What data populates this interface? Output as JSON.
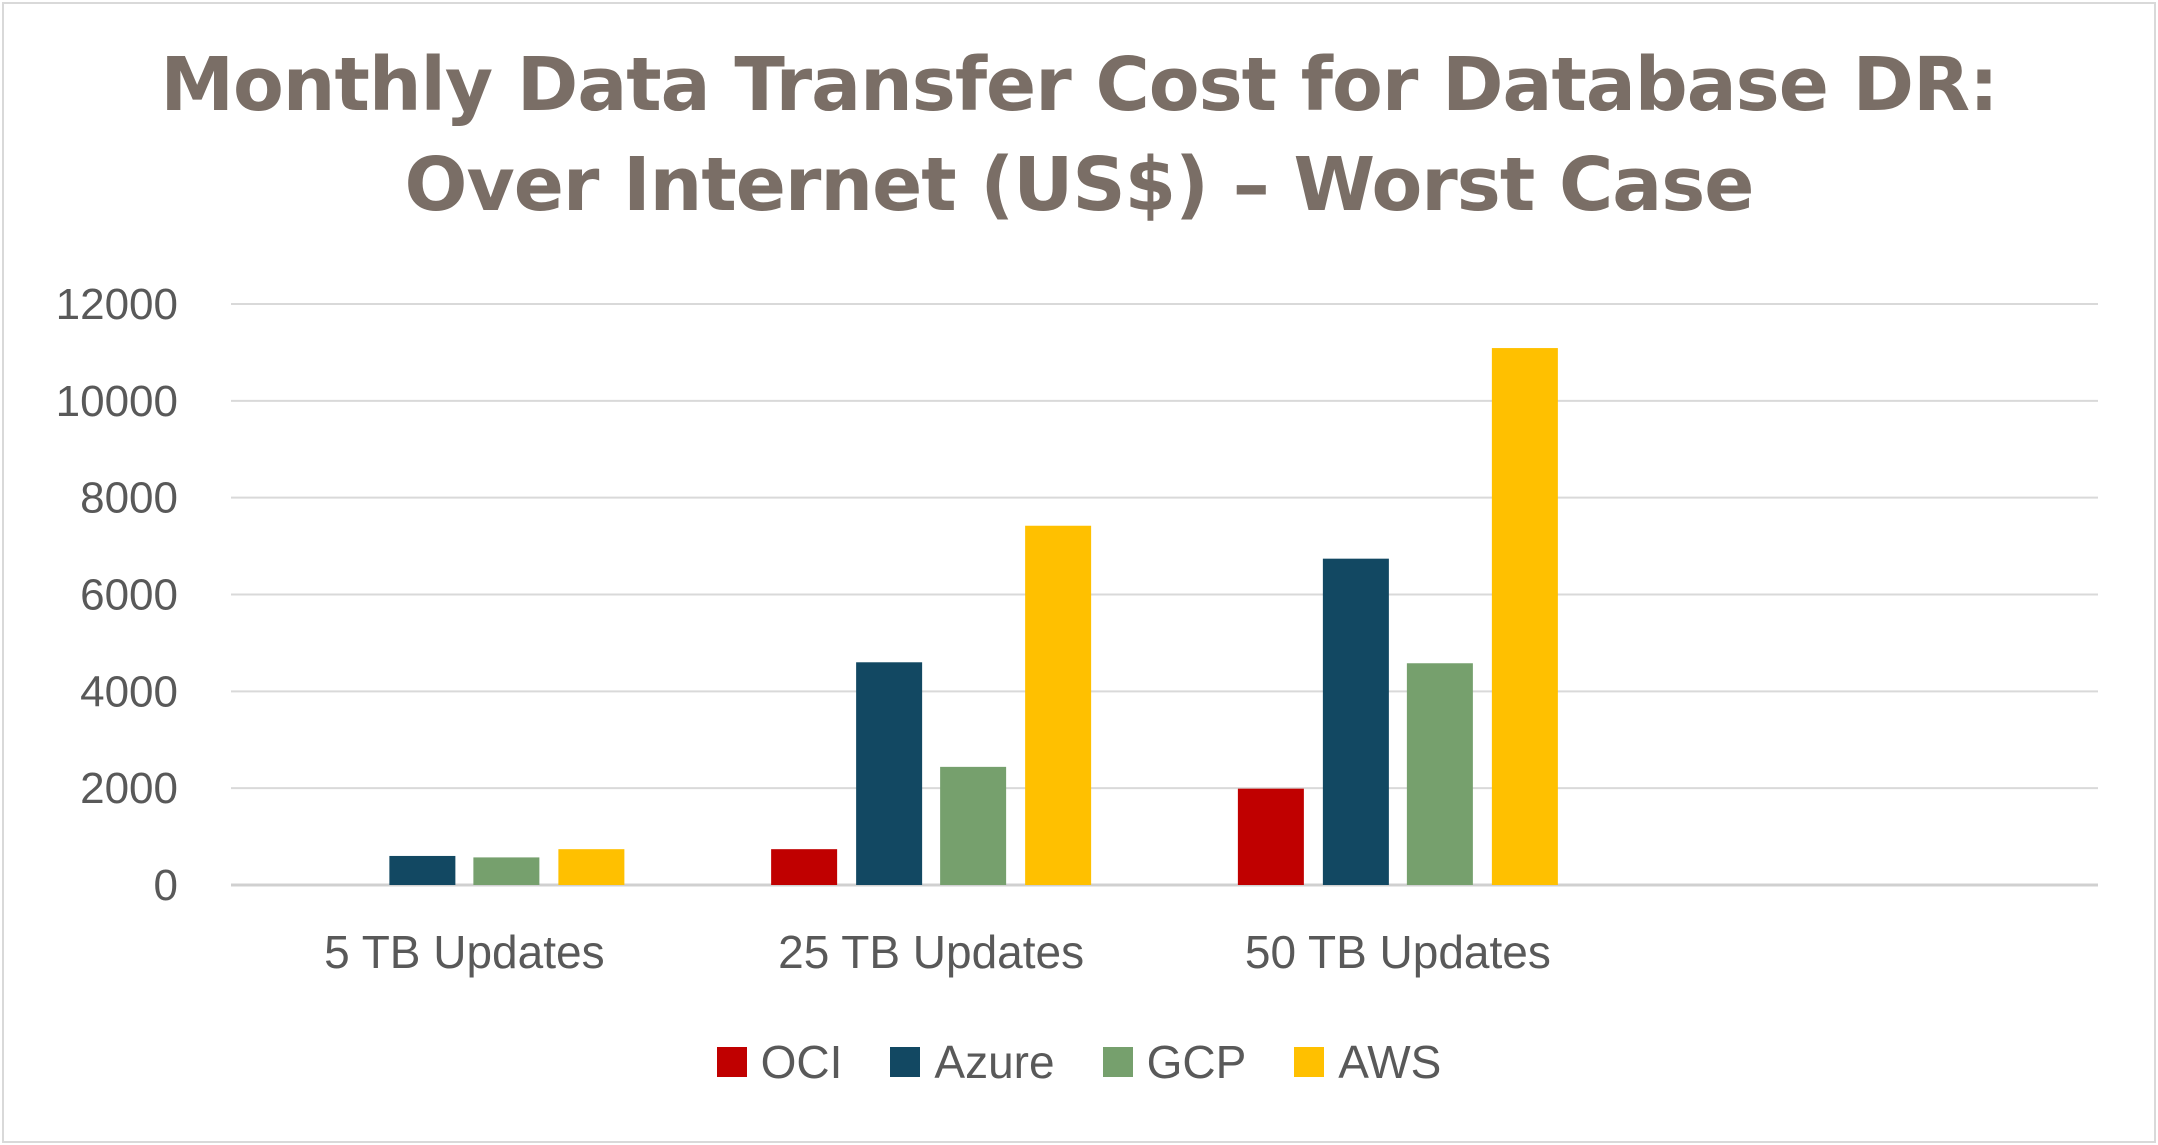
{
  "chart_data": {
    "type": "bar",
    "title": [
      "Monthly Data Transfer Cost for Database DR:",
      "Over Internet (US$) – Worst Case"
    ],
    "xlabel": "",
    "ylabel": "",
    "categories": [
      "5 TB Updates",
      "25 TB Updates",
      "50 TB Updates"
    ],
    "series": [
      {
        "name": "OCI",
        "color": "#c00000",
        "values": [
          0,
          740,
          1990
        ]
      },
      {
        "name": "Azure",
        "color": "#124862",
        "values": [
          600,
          4600,
          6740
        ]
      },
      {
        "name": "GCP",
        "color": "#76a06d",
        "values": [
          570,
          2440,
          4580
        ]
      },
      {
        "name": "AWS",
        "color": "#ffc000",
        "values": [
          740,
          7420,
          11090
        ]
      }
    ],
    "ylim": [
      0,
      12000
    ],
    "yticks": [
      0,
      2000,
      4000,
      6000,
      8000,
      10000,
      12000
    ],
    "grid": true,
    "legend_position": "bottom"
  }
}
